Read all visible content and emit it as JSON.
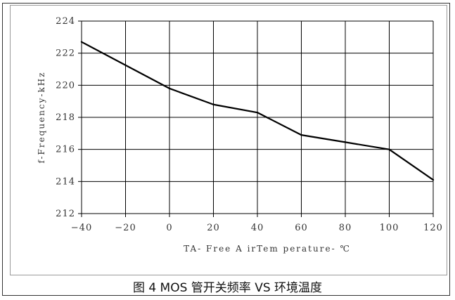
{
  "caption": "图 4 MOS 管开关频率 VS 环境温度",
  "chart_data": {
    "type": "line",
    "title": "",
    "xlabel": "TA- Free A irTem perature- ℃",
    "ylabel": "f-Frequency-kHz",
    "xlim": [
      -40,
      120
    ],
    "ylim": [
      212,
      224
    ],
    "x_ticks": [
      -40,
      -20,
      0,
      20,
      40,
      60,
      80,
      100,
      120
    ],
    "y_ticks": [
      212,
      214,
      216,
      218,
      220,
      222,
      224
    ],
    "grid": true,
    "legend": "none",
    "line_color": "#000000",
    "series": [
      {
        "x": [
          -40,
          0,
          20,
          40,
          60,
          80,
          100,
          120
        ],
        "y": [
          222.7,
          219.8,
          218.8,
          218.3,
          216.9,
          216.45,
          216.0,
          214.1
        ]
      }
    ]
  }
}
